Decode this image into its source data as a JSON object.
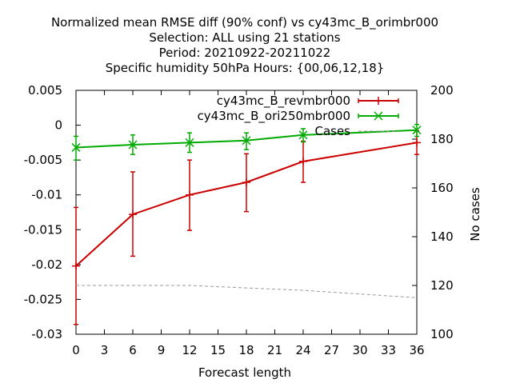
{
  "chart_data": {
    "type": "line",
    "title": [
      "Normalized mean RMSE diff (90% conf) vs cy43mc_B_orimbr000",
      "Selection: ALL using    21 stations",
      "Period: 20210922-20211022",
      "Specific humidity 50hPa   Hours: {00,06,12,18}"
    ],
    "xlabel": "Forecast length",
    "ylabel": "",
    "y2label": "No cases",
    "xlim": [
      0,
      36
    ],
    "ylim": [
      -0.03,
      0.005
    ],
    "y2lim": [
      100,
      200
    ],
    "x_ticks": [
      0,
      3,
      6,
      9,
      12,
      15,
      18,
      21,
      24,
      27,
      30,
      33,
      36
    ],
    "y_ticks": [
      0.005,
      0,
      -0.005,
      -0.01,
      -0.015,
      -0.02,
      -0.025,
      -0.03
    ],
    "y_tick_labels": [
      "0.005",
      "0",
      "-0.005",
      "-0.01",
      "-0.015",
      "-0.02",
      "-0.025",
      "-0.03"
    ],
    "y2_ticks": [
      200,
      180,
      160,
      140,
      120,
      100
    ],
    "legend_position": "top-right",
    "series": [
      {
        "name": "cy43mc_B_revmbr000",
        "color": "#cc0000",
        "marker": "plus",
        "x": [
          0,
          6,
          12,
          18,
          24,
          36
        ],
        "y": [
          -0.0202,
          -0.0128,
          -0.01,
          -0.0082,
          -0.0052,
          -0.0025
        ],
        "err_low": [
          -0.0286,
          -0.0188,
          -0.0151,
          -0.0124,
          -0.0082,
          -0.0042
        ],
        "err_high": [
          -0.0118,
          -0.0067,
          -0.005,
          -0.0041,
          -0.0023,
          -0.0008
        ]
      },
      {
        "name": "cy43mc_B_ori250mbr000",
        "color": "#00aa00",
        "marker": "cross",
        "x": [
          0,
          6,
          12,
          18,
          24,
          36
        ],
        "y": [
          -0.0032,
          -0.0028,
          -0.0025,
          -0.0022,
          -0.0014,
          -0.0007
        ],
        "err_low": [
          -0.005,
          -0.0042,
          -0.0039,
          -0.0035,
          -0.0024,
          -0.0016
        ],
        "err_high": [
          -0.0016,
          -0.0014,
          -0.0011,
          -0.0011,
          -0.0005,
          0.0001
        ]
      },
      {
        "name": "Cases",
        "color": "#999999",
        "marker": "none",
        "dashed": true,
        "axis": "y2",
        "x": [
          0,
          6,
          12,
          18,
          24,
          36
        ],
        "y": [
          120,
          120,
          120,
          119,
          118,
          115
        ]
      }
    ]
  }
}
